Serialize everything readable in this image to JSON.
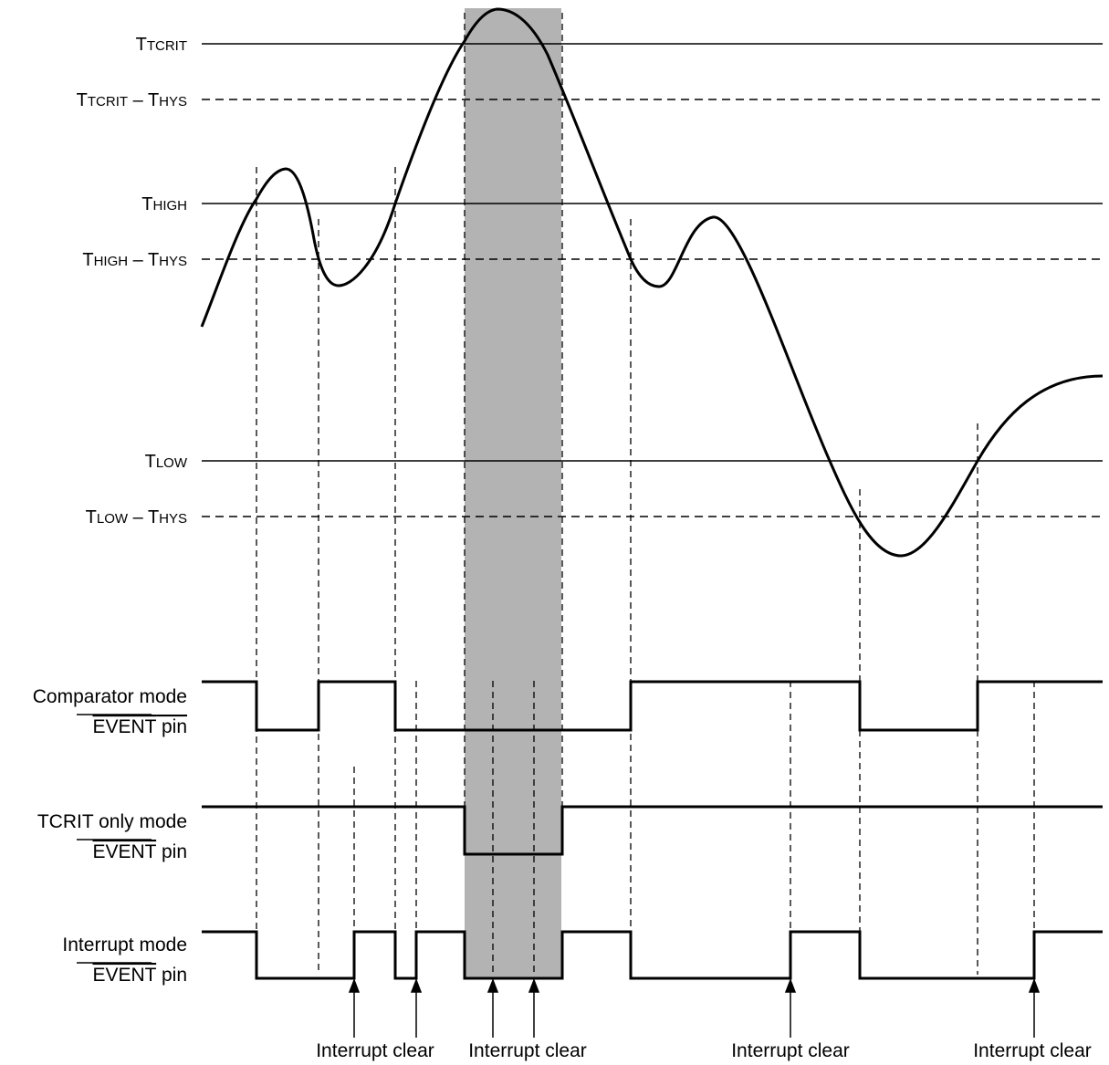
{
  "thresholds": {
    "tcrit": {
      "main": "T",
      "sub": "TCRIT"
    },
    "tcrit_hys": {
      "main1": "T",
      "sub1": "TCRIT",
      "sep": " – T",
      "sub2": "HYS"
    },
    "thigh": {
      "main": "T",
      "sub": "HIGH"
    },
    "thigh_hys": {
      "main1": "T",
      "sub1": "HIGH",
      "sep": " – T",
      "sub2": "HYS"
    },
    "tlow": {
      "main": "T",
      "sub": "LOW"
    },
    "tlow_hys": {
      "main1": "T",
      "sub1": "LOW",
      "sep": " – T",
      "sub2": "HYS"
    }
  },
  "signals": {
    "comparator": {
      "line1": "Comparator mode",
      "pin_name": "EVENT",
      "pin_suffix": " pin"
    },
    "tcrit_only": {
      "line1": "TCRIT only mode",
      "pin_name": "EVENT",
      "pin_suffix": " pin"
    },
    "interrupt": {
      "line1": "Interrupt mode",
      "pin_name": "EVENT",
      "pin_suffix": " pin"
    }
  },
  "annotations": {
    "clear_1": "Interrupt clear",
    "clear_2": "Interrupt clear",
    "clear_3": "Interrupt clear",
    "clear_4": "Interrupt clear"
  },
  "colors": {
    "line": "#000000",
    "shade": "#b3b3b3",
    "background": "#ffffff"
  }
}
